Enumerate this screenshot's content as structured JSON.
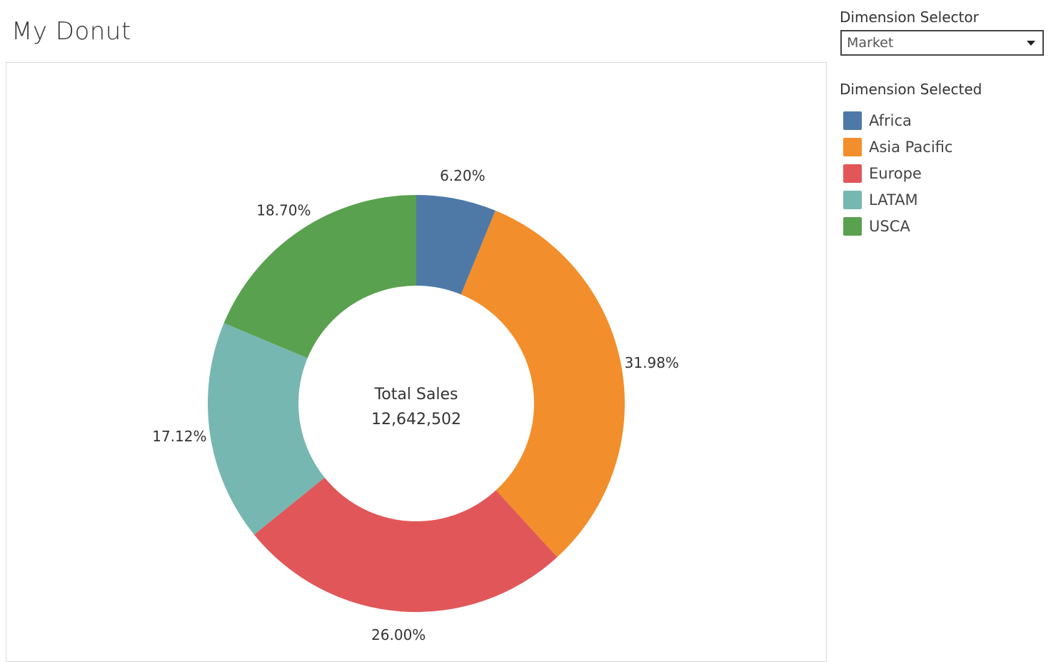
{
  "title": "My Donut",
  "selector": {
    "label": "Dimension Selector",
    "value": "Market"
  },
  "legend": {
    "title": "Dimension Selected"
  },
  "chart_data": {
    "type": "pie",
    "subtype": "donut",
    "center_label": "Total Sales",
    "center_value": "12,642,502",
    "categories": [
      "Africa",
      "Asia Pacific",
      "Europe",
      "LATAM",
      "USCA"
    ],
    "values": [
      6.2,
      31.98,
      26.0,
      17.12,
      18.7
    ],
    "labels": [
      "6.20%",
      "31.98%",
      "26.00%",
      "17.12%",
      "18.70%"
    ],
    "colors": [
      "#4e79a7",
      "#f28e2b",
      "#e15759",
      "#76b7b2",
      "#59a14f"
    ],
    "legend_placement": "right"
  }
}
